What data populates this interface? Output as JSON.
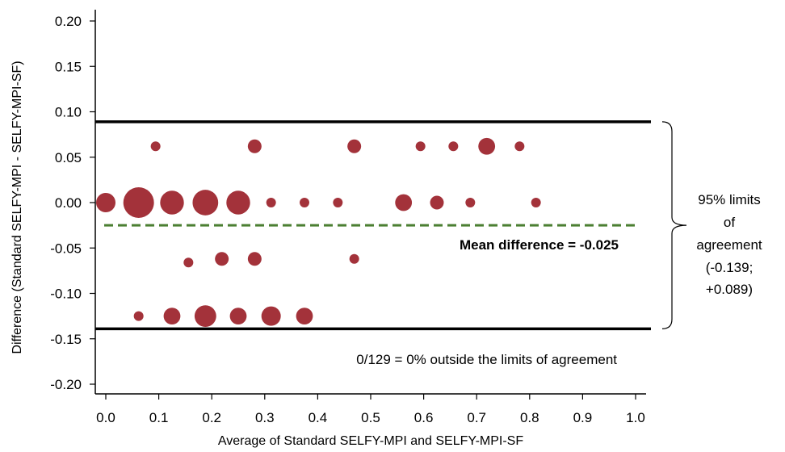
{
  "chart_data": {
    "type": "scatter",
    "title": "",
    "xlabel": "Average of Standard SELFY-MPI and SELFY-MPI-SF",
    "ylabel": "Difference (Standard SELFY-MPI - SELFY-MPI-SF)",
    "xlim": [
      0.0,
      1.0
    ],
    "ylim": [
      -0.2,
      0.2
    ],
    "x_ticks": [
      "0.0",
      "0.1",
      "0.2",
      "0.3",
      "0.4",
      "0.5",
      "0.6",
      "0.7",
      "0.8",
      "0.9",
      "1.0"
    ],
    "y_ticks": [
      "0.20",
      "0.15",
      "0.10",
      "0.05",
      "0.00",
      "-0.05",
      "-0.10",
      "-0.15",
      "-0.20"
    ],
    "grid": false,
    "bubble_color": "#a3323a",
    "mean_line_color": "#4b7f32",
    "points": [
      {
        "x": 0.094,
        "y": 0.062,
        "size": 1
      },
      {
        "x": 0.281,
        "y": 0.062,
        "size": 2
      },
      {
        "x": 0.469,
        "y": 0.062,
        "size": 2
      },
      {
        "x": 0.594,
        "y": 0.062,
        "size": 1
      },
      {
        "x": 0.656,
        "y": 0.062,
        "size": 1
      },
      {
        "x": 0.719,
        "y": 0.062,
        "size": 3
      },
      {
        "x": 0.781,
        "y": 0.062,
        "size": 1
      },
      {
        "x": 0.0,
        "y": 0.0,
        "size": 4
      },
      {
        "x": 0.062,
        "y": 0.0,
        "size": 10
      },
      {
        "x": 0.125,
        "y": 0.0,
        "size": 6
      },
      {
        "x": 0.188,
        "y": 0.0,
        "size": 7
      },
      {
        "x": 0.25,
        "y": 0.0,
        "size": 6
      },
      {
        "x": 0.312,
        "y": 0.0,
        "size": 1
      },
      {
        "x": 0.375,
        "y": 0.0,
        "size": 1
      },
      {
        "x": 0.438,
        "y": 0.0,
        "size": 1
      },
      {
        "x": 0.562,
        "y": 0.0,
        "size": 3
      },
      {
        "x": 0.625,
        "y": 0.0,
        "size": 2
      },
      {
        "x": 0.688,
        "y": 0.0,
        "size": 1
      },
      {
        "x": 0.812,
        "y": 0.0,
        "size": 1
      },
      {
        "x": 0.156,
        "y": -0.066,
        "size": 1
      },
      {
        "x": 0.219,
        "y": -0.062,
        "size": 2
      },
      {
        "x": 0.281,
        "y": -0.062,
        "size": 2
      },
      {
        "x": 0.469,
        "y": -0.062,
        "size": 1
      },
      {
        "x": 0.062,
        "y": -0.125,
        "size": 1
      },
      {
        "x": 0.125,
        "y": -0.125,
        "size": 3
      },
      {
        "x": 0.188,
        "y": -0.125,
        "size": 5
      },
      {
        "x": 0.25,
        "y": -0.125,
        "size": 3
      },
      {
        "x": 0.312,
        "y": -0.125,
        "size": 4
      },
      {
        "x": 0.375,
        "y": -0.125,
        "size": 3
      }
    ],
    "mean_difference": -0.025,
    "upper_limit": 0.089,
    "lower_limit": -0.139,
    "annotations": {
      "mean_label": "Mean difference = -0.025",
      "outside_label": "0/129 = 0% outside the limits of agreement",
      "limits_lines": [
        "95% limits",
        "of",
        "agreement",
        "(-0.139;",
        "+0.089)"
      ]
    }
  }
}
